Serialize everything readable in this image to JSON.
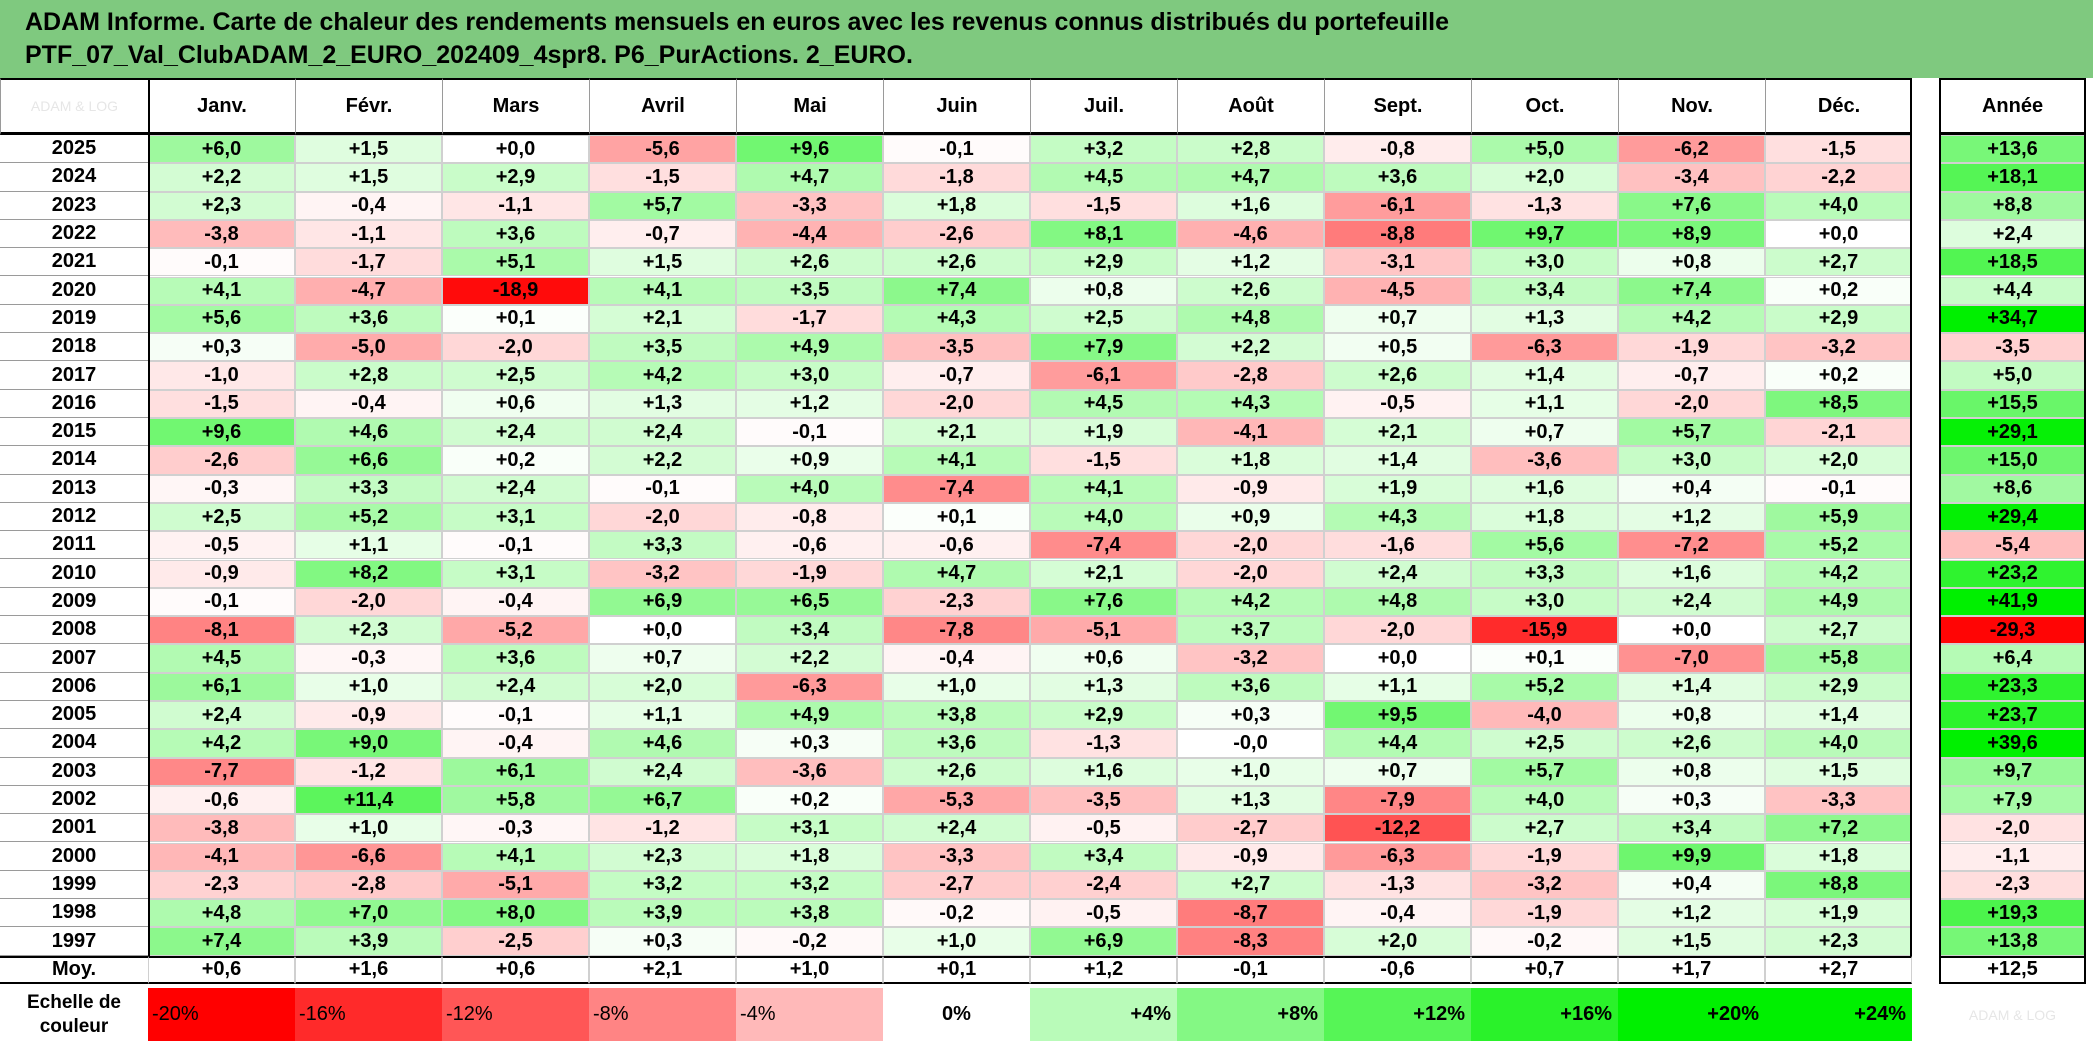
{
  "chart_data": {
    "type": "heatmap",
    "title_lines": [
      "ADAM Informe. Carte de chaleur des rendements mensuels en euros avec les revenus connus distribués du portefeuille",
      "PTF_07_Val_ClubADAM_2_EURO_202409_4spr8. P6_PurActions. 2_EURO."
    ],
    "corner_watermark": "ADAM & LOG",
    "month_labels": [
      "Janv.",
      "Févr.",
      "Mars",
      "Avril",
      "Mai",
      "Juin",
      "Juil.",
      "Août",
      "Sept.",
      "Oct.",
      "Nov.",
      "Déc."
    ],
    "annual_label": "Année",
    "rows": [
      {
        "year": "2025",
        "values": [
          "+6,0",
          "+1,5",
          "+0,0",
          "-5,6",
          "+9,6",
          "-0,1",
          "+3,2",
          "+2,8",
          "-0,8",
          "+5,0",
          "-6,2",
          "-1,5"
        ],
        "annual": "+13,6"
      },
      {
        "year": "2024",
        "values": [
          "+2,2",
          "+1,5",
          "+2,9",
          "-1,5",
          "+4,7",
          "-1,8",
          "+4,5",
          "+4,7",
          "+3,6",
          "+2,0",
          "-3,4",
          "-2,2"
        ],
        "annual": "+18,1"
      },
      {
        "year": "2023",
        "values": [
          "+2,3",
          "-0,4",
          "-1,1",
          "+5,7",
          "-3,3",
          "+1,8",
          "-1,5",
          "+1,6",
          "-6,1",
          "-1,3",
          "+7,6",
          "+4,0"
        ],
        "annual": "+8,8"
      },
      {
        "year": "2022",
        "values": [
          "-3,8",
          "-1,1",
          "+3,6",
          "-0,7",
          "-4,4",
          "-2,6",
          "+8,1",
          "-4,6",
          "-8,8",
          "+9,7",
          "+8,9",
          "+0,0"
        ],
        "annual": "+2,4"
      },
      {
        "year": "2021",
        "values": [
          "-0,1",
          "-1,7",
          "+5,1",
          "+1,5",
          "+2,6",
          "+2,6",
          "+2,9",
          "+1,2",
          "-3,1",
          "+3,0",
          "+0,8",
          "+2,7"
        ],
        "annual": "+18,5"
      },
      {
        "year": "2020",
        "values": [
          "+4,1",
          "-4,7",
          "-18,9",
          "+4,1",
          "+3,5",
          "+7,4",
          "+0,8",
          "+2,6",
          "-4,5",
          "+3,4",
          "+7,4",
          "+0,2"
        ],
        "annual": "+4,4"
      },
      {
        "year": "2019",
        "values": [
          "+5,6",
          "+3,6",
          "+0,1",
          "+2,1",
          "-1,7",
          "+4,3",
          "+2,5",
          "+4,8",
          "+0,7",
          "+1,3",
          "+4,2",
          "+2,9"
        ],
        "annual": "+34,7"
      },
      {
        "year": "2018",
        "values": [
          "+0,3",
          "-5,0",
          "-2,0",
          "+3,5",
          "+4,9",
          "-3,5",
          "+7,9",
          "+2,2",
          "+0,5",
          "-6,3",
          "-1,9",
          "-3,2"
        ],
        "annual": "-3,5"
      },
      {
        "year": "2017",
        "values": [
          "-1,0",
          "+2,8",
          "+2,5",
          "+4,2",
          "+3,0",
          "-0,7",
          "-6,1",
          "-2,8",
          "+2,6",
          "+1,4",
          "-0,7",
          "+0,2"
        ],
        "annual": "+5,0"
      },
      {
        "year": "2016",
        "values": [
          "-1,5",
          "-0,4",
          "+0,6",
          "+1,3",
          "+1,2",
          "-2,0",
          "+4,5",
          "+4,3",
          "-0,5",
          "+1,1",
          "-2,0",
          "+8,5"
        ],
        "annual": "+15,5"
      },
      {
        "year": "2015",
        "values": [
          "+9,6",
          "+4,6",
          "+2,4",
          "+2,4",
          "-0,1",
          "+2,1",
          "+1,9",
          "-4,1",
          "+2,1",
          "+0,7",
          "+5,7",
          "-2,1"
        ],
        "annual": "+29,1"
      },
      {
        "year": "2014",
        "values": [
          "-2,6",
          "+6,6",
          "+0,2",
          "+2,2",
          "+0,9",
          "+4,1",
          "-1,5",
          "+1,8",
          "+1,4",
          "-3,6",
          "+3,0",
          "+2,0"
        ],
        "annual": "+15,0"
      },
      {
        "year": "2013",
        "values": [
          "-0,3",
          "+3,3",
          "+2,4",
          "-0,1",
          "+4,0",
          "-7,4",
          "+4,1",
          "-0,9",
          "+1,9",
          "+1,6",
          "+0,4",
          "-0,1"
        ],
        "annual": "+8,6"
      },
      {
        "year": "2012",
        "values": [
          "+2,5",
          "+5,2",
          "+3,1",
          "-2,0",
          "-0,8",
          "+0,1",
          "+4,0",
          "+0,9",
          "+4,3",
          "+1,8",
          "+1,2",
          "+5,9"
        ],
        "annual": "+29,4"
      },
      {
        "year": "2011",
        "values": [
          "-0,5",
          "+1,1",
          "-0,1",
          "+3,3",
          "-0,6",
          "-0,6",
          "-7,4",
          "-2,0",
          "-1,6",
          "+5,6",
          "-7,2",
          "+5,2"
        ],
        "annual": "-5,4"
      },
      {
        "year": "2010",
        "values": [
          "-0,9",
          "+8,2",
          "+3,1",
          "-3,2",
          "-1,9",
          "+4,7",
          "+2,1",
          "-2,0",
          "+2,4",
          "+3,3",
          "+1,6",
          "+4,2"
        ],
        "annual": "+23,2"
      },
      {
        "year": "2009",
        "values": [
          "-0,1",
          "-2,0",
          "-0,4",
          "+6,9",
          "+6,5",
          "-2,3",
          "+7,6",
          "+4,2",
          "+4,8",
          "+3,0",
          "+2,4",
          "+4,9"
        ],
        "annual": "+41,9"
      },
      {
        "year": "2008",
        "values": [
          "-8,1",
          "+2,3",
          "-5,2",
          "+0,0",
          "+3,4",
          "-7,8",
          "-5,1",
          "+3,7",
          "-2,0",
          "-15,9",
          "+0,0",
          "+2,7"
        ],
        "annual": "-29,3"
      },
      {
        "year": "2007",
        "values": [
          "+4,5",
          "-0,3",
          "+3,6",
          "+0,7",
          "+2,2",
          "-0,4",
          "+0,6",
          "-3,2",
          "+0,0",
          "+0,1",
          "-7,0",
          "+5,8"
        ],
        "annual": "+6,4"
      },
      {
        "year": "2006",
        "values": [
          "+6,1",
          "+1,0",
          "+2,4",
          "+2,0",
          "-6,3",
          "+1,0",
          "+1,3",
          "+3,6",
          "+1,1",
          "+5,2",
          "+1,4",
          "+2,9"
        ],
        "annual": "+23,3"
      },
      {
        "year": "2005",
        "values": [
          "+2,4",
          "-0,9",
          "-0,1",
          "+1,1",
          "+4,9",
          "+3,8",
          "+2,9",
          "+0,3",
          "+9,5",
          "-4,0",
          "+0,8",
          "+1,4"
        ],
        "annual": "+23,7"
      },
      {
        "year": "2004",
        "values": [
          "+4,2",
          "+9,0",
          "-0,4",
          "+4,6",
          "+0,3",
          "+3,6",
          "-1,3",
          "-0,0",
          "+4,4",
          "+2,5",
          "+2,6",
          "+4,0"
        ],
        "annual": "+39,6"
      },
      {
        "year": "2003",
        "values": [
          "-7,7",
          "-1,2",
          "+6,1",
          "+2,4",
          "-3,6",
          "+2,6",
          "+1,6",
          "+1,0",
          "+0,7",
          "+5,7",
          "+0,8",
          "+1,5"
        ],
        "annual": "+9,7"
      },
      {
        "year": "2002",
        "values": [
          "-0,6",
          "+11,4",
          "+5,8",
          "+6,7",
          "+0,2",
          "-5,3",
          "-3,5",
          "+1,3",
          "-7,9",
          "+4,0",
          "+0,3",
          "-3,3"
        ],
        "annual": "+7,9"
      },
      {
        "year": "2001",
        "values": [
          "-3,8",
          "+1,0",
          "-0,3",
          "-1,2",
          "+3,1",
          "+2,4",
          "-0,5",
          "-2,7",
          "-12,2",
          "+2,7",
          "+3,4",
          "+7,2"
        ],
        "annual": "-2,0"
      },
      {
        "year": "2000",
        "values": [
          "-4,1",
          "-6,6",
          "+4,1",
          "+2,3",
          "+1,8",
          "-3,3",
          "+3,4",
          "-0,9",
          "-6,3",
          "-1,9",
          "+9,9",
          "+1,8"
        ],
        "annual": "-1,1"
      },
      {
        "year": "1999",
        "values": [
          "-2,3",
          "-2,8",
          "-5,1",
          "+3,2",
          "+3,2",
          "-2,7",
          "-2,4",
          "+2,7",
          "-1,3",
          "-3,2",
          "+0,4",
          "+8,8"
        ],
        "annual": "-2,3"
      },
      {
        "year": "1998",
        "values": [
          "+4,8",
          "+7,0",
          "+8,0",
          "+3,9",
          "+3,8",
          "-0,2",
          "-0,5",
          "-8,7",
          "-0,4",
          "-1,9",
          "+1,2",
          "+1,9"
        ],
        "annual": "+19,3"
      },
      {
        "year": "1997",
        "values": [
          "+7,4",
          "+3,9",
          "-2,5",
          "+0,3",
          "-0,2",
          "+1,0",
          "+6,9",
          "-8,3",
          "+2,0",
          "-0,2",
          "+1,5",
          "+2,3"
        ],
        "annual": "+13,8"
      }
    ],
    "average": {
      "label": "Moy.",
      "values": [
        "+0,6",
        "+1,6",
        "+0,6",
        "+2,1",
        "+1,0",
        "+0,1",
        "+1,2",
        "-0,1",
        "-0,6",
        "+0,7",
        "+1,7",
        "+2,7"
      ],
      "annual": "+12,5"
    },
    "color_scale": {
      "label_lines": [
        "Echelle de",
        "couleur"
      ],
      "stops": [
        "-20%",
        "-16%",
        "-12%",
        "-8%",
        "-4%",
        "0%",
        "+4%",
        "+8%",
        "+12%",
        "+16%",
        "+20%",
        "+24%"
      ],
      "stop_values": [
        -20,
        -16,
        -12,
        -8,
        -4,
        0,
        4,
        8,
        12,
        16,
        20,
        24
      ],
      "trailing_watermark": "ADAM & LOG",
      "negative_color": "#ff0000",
      "positive_color": "#00f000",
      "neutral_color": "#ffffff"
    }
  }
}
